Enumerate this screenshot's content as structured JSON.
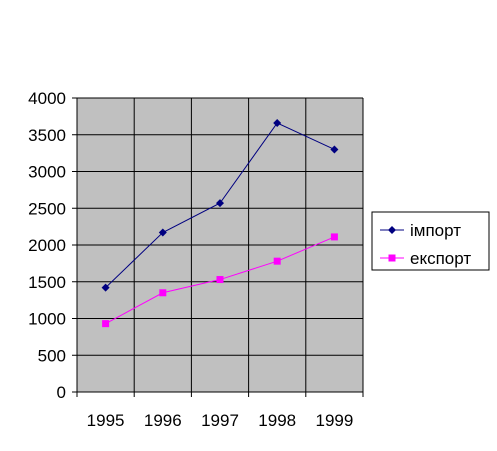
{
  "chart_data": {
    "type": "line",
    "categories": [
      "1995",
      "1996",
      "1997",
      "1998",
      "1999"
    ],
    "series": [
      {
        "name": "імпорт",
        "values": [
          1420,
          2170,
          2570,
          3660,
          3300
        ],
        "color": "#000080",
        "marker": "diamond"
      },
      {
        "name": "експорт",
        "values": [
          930,
          1350,
          1530,
          1780,
          2110
        ],
        "color": "#ff00ff",
        "marker": "square"
      }
    ],
    "yticks": [
      "0",
      "500",
      "1000",
      "1500",
      "2000",
      "2500",
      "3000",
      "3500",
      "4000"
    ],
    "ylim": [
      0,
      4000
    ],
    "title": "",
    "xlabel": "",
    "ylabel": "",
    "grid": true,
    "plot_background": "#c0c0c0",
    "legend_position": "right"
  }
}
